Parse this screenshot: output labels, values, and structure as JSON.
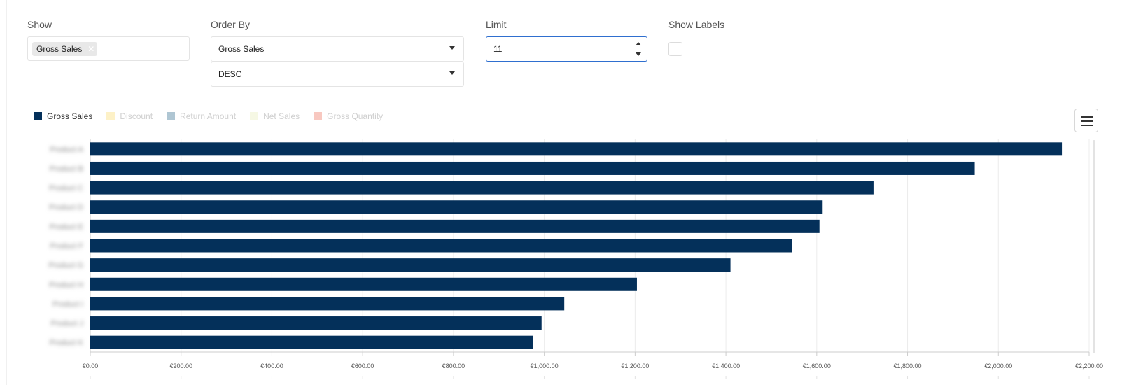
{
  "controls": {
    "show": {
      "label": "Show",
      "chips": [
        "Gross Sales"
      ]
    },
    "order_by": {
      "label": "Order By",
      "field": "Gross Sales",
      "direction": "DESC"
    },
    "limit": {
      "label": "Limit",
      "value": "11"
    },
    "show_labels": {
      "label": "Show Labels",
      "checked": false
    }
  },
  "legend": [
    {
      "label": "Gross Sales",
      "color": "#04305a",
      "active": true
    },
    {
      "label": "Discount",
      "color": "#fdf1c7",
      "active": false
    },
    {
      "label": "Return Amount",
      "color": "#afc6d3",
      "active": false
    },
    {
      "label": "Net Sales",
      "color": "#f6f8e4",
      "active": false
    },
    {
      "label": "Gross Quantity",
      "color": "#f8c8c0",
      "active": false
    }
  ],
  "chart_data": {
    "type": "bar",
    "orientation": "horizontal",
    "categories": [
      "Product A",
      "Product B",
      "Product C",
      "Product D",
      "Product E",
      "Product F",
      "Product G",
      "Product H",
      "Product I",
      "Product J",
      "Product K"
    ],
    "series": [
      {
        "name": "Gross Sales",
        "color": "#04305a",
        "values": [
          2140,
          1948,
          1725,
          1613,
          1606,
          1546,
          1410,
          1204,
          1044,
          994,
          975
        ]
      }
    ],
    "xlim": [
      0,
      2200
    ],
    "x_ticks": [
      "€0.00",
      "€200.00",
      "€400.00",
      "€600.00",
      "€800.00",
      "€1,000.00",
      "€1,200.00",
      "€1,400.00",
      "€1,600.00",
      "€1,800.00",
      "€2,000.00",
      "€2,200.00"
    ],
    "grid": true,
    "legend_position": "top-left"
  }
}
